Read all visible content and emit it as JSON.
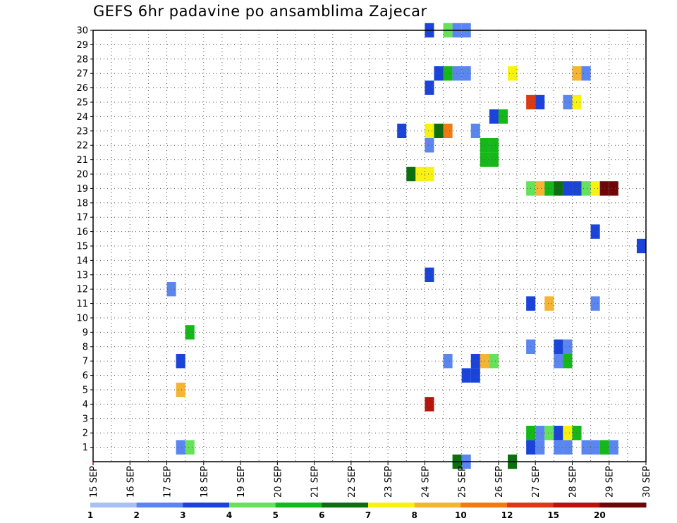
{
  "chart_data": {
    "type": "heatmap",
    "title": "GEFS 6hr padavine po ansamblima Zajecar",
    "ylim": [
      0,
      30
    ],
    "y_ticks": [
      1,
      2,
      3,
      4,
      5,
      6,
      7,
      8,
      9,
      10,
      11,
      12,
      13,
      14,
      15,
      16,
      17,
      18,
      19,
      20,
      21,
      22,
      23,
      24,
      25,
      26,
      27,
      28,
      29,
      30
    ],
    "x_ticks": [
      {
        "day": 15,
        "label": "15 SEP"
      },
      {
        "day": 16,
        "label": "16 SEP"
      },
      {
        "day": 17,
        "label": "17 SEP"
      },
      {
        "day": 18,
        "label": "18 SEP"
      },
      {
        "day": 19,
        "label": "19 SEP"
      },
      {
        "day": 20,
        "label": "20 SEP"
      },
      {
        "day": 21,
        "label": "21 SEP"
      },
      {
        "day": 22,
        "label": "22 SEP"
      },
      {
        "day": 23,
        "label": "23 SEP"
      },
      {
        "day": 24,
        "label": "24 SEP"
      },
      {
        "day": 25,
        "label": "25 SEP"
      },
      {
        "day": 26,
        "label": "26 SEP"
      },
      {
        "day": 27,
        "label": "27 SEP"
      },
      {
        "day": 28,
        "label": "28 SEP"
      },
      {
        "day": 29,
        "label": "29 SEP"
      },
      {
        "day": 30,
        "label": "30 SEP"
      }
    ],
    "xlim": [
      15,
      30
    ],
    "colorbar": {
      "labels": [
        "1",
        "2",
        "3",
        "4",
        "5",
        "6",
        "7",
        "8",
        "10",
        "12",
        "15",
        "20"
      ],
      "colors": [
        "#a9c0f5",
        "#5b86f0",
        "#1a44d9",
        "#66e15a",
        "#14b818",
        "#0c6f10",
        "#f8f210",
        "#f5b432",
        "#f07a14",
        "#dc3a14",
        "#b8140c",
        "#6e0608"
      ]
    },
    "cells": [
      {
        "day": 24.125,
        "member": 30,
        "value": 2
      },
      {
        "day": 24.625,
        "member": 30,
        "value": 3
      },
      {
        "day": 24.875,
        "member": 30,
        "value": 1
      },
      {
        "day": 25.125,
        "member": 30,
        "value": 1
      },
      {
        "day": 24.375,
        "member": 27,
        "value": 2
      },
      {
        "day": 24.625,
        "member": 27,
        "value": 4
      },
      {
        "day": 24.875,
        "member": 27,
        "value": 1
      },
      {
        "day": 25.125,
        "member": 27,
        "value": 1
      },
      {
        "day": 26.375,
        "member": 27,
        "value": 6
      },
      {
        "day": 28.125,
        "member": 27,
        "value": 7
      },
      {
        "day": 28.375,
        "member": 27,
        "value": 1
      },
      {
        "day": 24.125,
        "member": 26,
        "value": 2
      },
      {
        "day": 26.875,
        "member": 25,
        "value": 9
      },
      {
        "day": 27.125,
        "member": 25,
        "value": 2
      },
      {
        "day": 27.875,
        "member": 25,
        "value": 1
      },
      {
        "day": 28.125,
        "member": 25,
        "value": 6
      },
      {
        "day": 25.875,
        "member": 24,
        "value": 2
      },
      {
        "day": 26.125,
        "member": 24,
        "value": 4
      },
      {
        "day": 23.375,
        "member": 23,
        "value": 2
      },
      {
        "day": 24.125,
        "member": 23,
        "value": 6
      },
      {
        "day": 24.375,
        "member": 23,
        "value": 5
      },
      {
        "day": 24.625,
        "member": 23,
        "value": 8
      },
      {
        "day": 25.375,
        "member": 23,
        "value": 1
      },
      {
        "day": 24.125,
        "member": 22,
        "value": 1
      },
      {
        "day": 25.625,
        "member": 22,
        "value": 4
      },
      {
        "day": 25.875,
        "member": 22,
        "value": 4
      },
      {
        "day": 25.625,
        "member": 21,
        "value": 4
      },
      {
        "day": 25.875,
        "member": 21,
        "value": 4
      },
      {
        "day": 23.625,
        "member": 20,
        "value": 5
      },
      {
        "day": 23.875,
        "member": 20,
        "value": 6
      },
      {
        "day": 24.125,
        "member": 20,
        "value": 6
      },
      {
        "day": 26.875,
        "member": 19,
        "value": 3
      },
      {
        "day": 27.125,
        "member": 19,
        "value": 7
      },
      {
        "day": 27.375,
        "member": 19,
        "value": 4
      },
      {
        "day": 27.625,
        "member": 19,
        "value": 5
      },
      {
        "day": 27.875,
        "member": 19,
        "value": 2
      },
      {
        "day": 28.125,
        "member": 19,
        "value": 2
      },
      {
        "day": 28.375,
        "member": 19,
        "value": 3
      },
      {
        "day": 28.625,
        "member": 19,
        "value": 6
      },
      {
        "day": 28.875,
        "member": 19,
        "value": 11
      },
      {
        "day": 29.125,
        "member": 19,
        "value": 11
      },
      {
        "day": 28.625,
        "member": 16,
        "value": 2
      },
      {
        "day": 29.875,
        "member": 15,
        "value": 2
      },
      {
        "day": 24.125,
        "member": 13,
        "value": 2
      },
      {
        "day": 17.125,
        "member": 12,
        "value": 1
      },
      {
        "day": 26.875,
        "member": 11,
        "value": 2
      },
      {
        "day": 27.375,
        "member": 11,
        "value": 7
      },
      {
        "day": 28.625,
        "member": 11,
        "value": 1
      },
      {
        "day": 17.625,
        "member": 9,
        "value": 4
      },
      {
        "day": 26.875,
        "member": 8,
        "value": 1
      },
      {
        "day": 27.625,
        "member": 8,
        "value": 2
      },
      {
        "day": 27.875,
        "member": 8,
        "value": 1
      },
      {
        "day": 17.375,
        "member": 7,
        "value": 2
      },
      {
        "day": 24.625,
        "member": 7,
        "value": 1
      },
      {
        "day": 25.375,
        "member": 7,
        "value": 2
      },
      {
        "day": 25.625,
        "member": 7,
        "value": 7
      },
      {
        "day": 25.875,
        "member": 7,
        "value": 3
      },
      {
        "day": 27.625,
        "member": 7,
        "value": 1
      },
      {
        "day": 27.875,
        "member": 7,
        "value": 4
      },
      {
        "day": 25.125,
        "member": 6,
        "value": 2
      },
      {
        "day": 25.375,
        "member": 6,
        "value": 2
      },
      {
        "day": 17.375,
        "member": 5,
        "value": 7
      },
      {
        "day": 24.125,
        "member": 4,
        "value": 10
      },
      {
        "day": 26.875,
        "member": 2,
        "value": 4
      },
      {
        "day": 27.125,
        "member": 2,
        "value": 1
      },
      {
        "day": 27.375,
        "member": 2,
        "value": 3
      },
      {
        "day": 27.625,
        "member": 2,
        "value": 2
      },
      {
        "day": 27.875,
        "member": 2,
        "value": 6
      },
      {
        "day": 28.125,
        "member": 2,
        "value": 4
      },
      {
        "day": 17.375,
        "member": 1,
        "value": 1
      },
      {
        "day": 17.625,
        "member": 1,
        "value": 3
      },
      {
        "day": 26.875,
        "member": 1,
        "value": 2
      },
      {
        "day": 27.125,
        "member": 1,
        "value": 1
      },
      {
        "day": 27.625,
        "member": 1,
        "value": 1
      },
      {
        "day": 27.875,
        "member": 1,
        "value": 1
      },
      {
        "day": 28.375,
        "member": 1,
        "value": 1
      },
      {
        "day": 28.625,
        "member": 1,
        "value": 1
      },
      {
        "day": 28.875,
        "member": 1,
        "value": 4
      },
      {
        "day": 29.125,
        "member": 1,
        "value": 1
      },
      {
        "day": 24.875,
        "member": 0,
        "value": 5
      },
      {
        "day": 25.125,
        "member": 0,
        "value": 1
      },
      {
        "day": 26.375,
        "member": 0,
        "value": 5
      }
    ]
  }
}
